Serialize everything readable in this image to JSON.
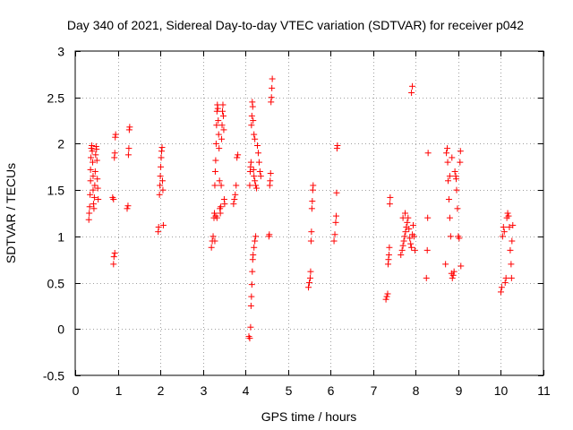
{
  "chart_data": {
    "type": "scatter",
    "title": "Day 340 of 2021, Sidereal Day-to-day VTEC variation (SDTVAR) for receiver p042",
    "xlabel": "GPS time / hours",
    "ylabel": "SDTVAR / TECUs",
    "xlim": [
      0,
      11
    ],
    "ylim": [
      -0.5,
      3
    ],
    "xticks": [
      "0",
      "1",
      "2",
      "3",
      "4",
      "5",
      "6",
      "7",
      "8",
      "9",
      "10",
      "11"
    ],
    "yticks": [
      "-0.5",
      "0",
      "0.5",
      "1",
      "1.5",
      "2",
      "2.5",
      "3"
    ],
    "grid": true,
    "marker": "+",
    "marker_color": "#ff0000",
    "series": [
      {
        "name": "SDTVAR",
        "points": [
          [
            0.32,
            1.18
          ],
          [
            0.33,
            1.25
          ],
          [
            0.34,
            1.32
          ],
          [
            0.35,
            1.45
          ],
          [
            0.36,
            1.6
          ],
          [
            0.36,
            1.72
          ],
          [
            0.37,
            1.85
          ],
          [
            0.38,
            1.95
          ],
          [
            0.39,
            1.98
          ],
          [
            0.4,
            1.92
          ],
          [
            0.41,
            1.8
          ],
          [
            0.42,
            1.65
          ],
          [
            0.42,
            1.5
          ],
          [
            0.43,
            1.35
          ],
          [
            0.44,
            1.3
          ],
          [
            0.45,
            1.42
          ],
          [
            0.46,
            1.55
          ],
          [
            0.47,
            1.7
          ],
          [
            0.48,
            1.88
          ],
          [
            0.49,
            1.97
          ],
          [
            0.5,
            1.94
          ],
          [
            0.51,
            1.82
          ],
          [
            0.52,
            1.62
          ],
          [
            0.53,
            1.52
          ],
          [
            0.54,
            1.4
          ],
          [
            0.88,
            1.42
          ],
          [
            0.9,
            1.4
          ],
          [
            0.92,
            1.85
          ],
          [
            0.93,
            1.9
          ],
          [
            0.94,
            2.07
          ],
          [
            0.95,
            2.1
          ],
          [
            0.9,
            0.7
          ],
          [
            0.91,
            0.78
          ],
          [
            0.93,
            0.82
          ],
          [
            1.22,
            1.3
          ],
          [
            1.24,
            1.33
          ],
          [
            1.25,
            1.88
          ],
          [
            1.26,
            1.95
          ],
          [
            1.27,
            2.15
          ],
          [
            1.28,
            2.18
          ],
          [
            1.95,
            1.05
          ],
          [
            1.96,
            1.1
          ],
          [
            1.98,
            1.45
          ],
          [
            1.99,
            1.55
          ],
          [
            2.0,
            1.65
          ],
          [
            2.01,
            1.75
          ],
          [
            2.02,
            1.85
          ],
          [
            2.03,
            1.92
          ],
          [
            2.04,
            1.96
          ],
          [
            2.05,
            1.6
          ],
          [
            2.06,
            1.5
          ],
          [
            2.07,
            1.12
          ],
          [
            3.2,
            0.88
          ],
          [
            3.22,
            0.95
          ],
          [
            3.24,
            1.0
          ],
          [
            3.26,
            1.2
          ],
          [
            3.27,
            1.25
          ],
          [
            3.28,
            1.55
          ],
          [
            3.29,
            1.7
          ],
          [
            3.3,
            1.82
          ],
          [
            3.31,
            2.0
          ],
          [
            3.32,
            2.2
          ],
          [
            3.33,
            2.35
          ],
          [
            3.34,
            2.42
          ],
          [
            3.35,
            2.38
          ],
          [
            3.36,
            2.25
          ],
          [
            3.37,
            2.1
          ],
          [
            3.38,
            1.95
          ],
          [
            3.39,
            1.6
          ],
          [
            3.4,
            1.3
          ],
          [
            3.41,
            1.25
          ],
          [
            3.42,
            1.32
          ],
          [
            3.43,
            1.55
          ],
          [
            3.44,
            2.05
          ],
          [
            3.45,
            2.2
          ],
          [
            3.46,
            2.35
          ],
          [
            3.47,
            2.42
          ],
          [
            3.48,
            2.3
          ],
          [
            3.49,
            2.15
          ],
          [
            3.5,
            1.4
          ],
          [
            3.51,
            1.35
          ],
          [
            3.28,
            0.95
          ],
          [
            3.3,
            1.22
          ],
          [
            3.33,
            1.2
          ],
          [
            3.72,
            1.35
          ],
          [
            3.74,
            1.4
          ],
          [
            3.76,
            1.45
          ],
          [
            3.78,
            1.55
          ],
          [
            3.8,
            1.85
          ],
          [
            3.82,
            1.88
          ],
          [
            4.08,
            -0.08
          ],
          [
            4.1,
            -0.1
          ],
          [
            4.12,
            0.02
          ],
          [
            4.13,
            0.25
          ],
          [
            4.14,
            0.35
          ],
          [
            4.15,
            0.48
          ],
          [
            4.16,
            0.62
          ],
          [
            4.17,
            0.75
          ],
          [
            4.18,
            0.8
          ],
          [
            4.2,
            0.88
          ],
          [
            4.22,
            0.95
          ],
          [
            4.24,
            1.0
          ],
          [
            4.1,
            1.55
          ],
          [
            4.11,
            1.7
          ],
          [
            4.12,
            1.75
          ],
          [
            4.13,
            1.8
          ],
          [
            4.14,
            2.2
          ],
          [
            4.15,
            2.3
          ],
          [
            4.16,
            2.45
          ],
          [
            4.17,
            2.4
          ],
          [
            4.18,
            2.25
          ],
          [
            4.19,
            1.72
          ],
          [
            4.2,
            1.65
          ],
          [
            4.22,
            1.6
          ],
          [
            4.24,
            1.55
          ],
          [
            4.26,
            1.52
          ],
          [
            4.28,
            1.98
          ],
          [
            4.3,
            1.9
          ],
          [
            4.32,
            1.8
          ],
          [
            4.34,
            1.7
          ],
          [
            4.36,
            1.65
          ],
          [
            4.2,
            2.1
          ],
          [
            4.22,
            2.05
          ],
          [
            4.55,
            1.0
          ],
          [
            4.56,
            1.02
          ],
          [
            4.57,
            1.55
          ],
          [
            4.58,
            1.6
          ],
          [
            4.59,
            1.68
          ],
          [
            4.6,
            2.45
          ],
          [
            4.61,
            2.5
          ],
          [
            4.62,
            2.6
          ],
          [
            4.63,
            2.7
          ],
          [
            5.48,
            0.45
          ],
          [
            5.5,
            0.5
          ],
          [
            5.52,
            0.55
          ],
          [
            5.53,
            0.62
          ],
          [
            5.54,
            0.95
          ],
          [
            5.55,
            1.05
          ],
          [
            5.56,
            1.3
          ],
          [
            5.57,
            1.38
          ],
          [
            5.58,
            1.5
          ],
          [
            5.59,
            1.55
          ],
          [
            6.08,
            0.95
          ],
          [
            6.1,
            1.02
          ],
          [
            6.12,
            1.15
          ],
          [
            6.13,
            1.22
          ],
          [
            6.14,
            1.47
          ],
          [
            6.15,
            1.95
          ],
          [
            6.16,
            1.98
          ],
          [
            7.3,
            0.32
          ],
          [
            7.32,
            0.35
          ],
          [
            7.34,
            0.38
          ],
          [
            7.35,
            0.7
          ],
          [
            7.36,
            0.75
          ],
          [
            7.37,
            0.8
          ],
          [
            7.38,
            0.88
          ],
          [
            7.39,
            1.35
          ],
          [
            7.4,
            1.42
          ],
          [
            7.65,
            0.8
          ],
          [
            7.68,
            0.85
          ],
          [
            7.7,
            0.9
          ],
          [
            7.72,
            0.95
          ],
          [
            7.74,
            1.0
          ],
          [
            7.76,
            1.05
          ],
          [
            7.78,
            1.1
          ],
          [
            7.8,
            1.15
          ],
          [
            7.82,
            1.2
          ],
          [
            7.84,
            1.08
          ],
          [
            7.86,
            0.98
          ],
          [
            7.88,
            0.92
          ],
          [
            7.9,
            0.88
          ],
          [
            7.92,
            1.02
          ],
          [
            7.94,
            1.12
          ],
          [
            7.96,
            1.0
          ],
          [
            7.98,
            0.85
          ],
          [
            7.7,
            1.2
          ],
          [
            7.75,
            1.25
          ],
          [
            7.9,
            2.55
          ],
          [
            7.92,
            2.62
          ],
          [
            8.25,
            0.55
          ],
          [
            8.27,
            0.85
          ],
          [
            8.28,
            1.2
          ],
          [
            8.29,
            1.9
          ],
          [
            8.7,
            0.7
          ],
          [
            8.72,
            1.9
          ],
          [
            8.74,
            1.95
          ],
          [
            8.75,
            1.8
          ],
          [
            8.76,
            1.6
          ],
          [
            8.78,
            1.4
          ],
          [
            8.8,
            1.2
          ],
          [
            8.82,
            1.0
          ],
          [
            8.84,
            0.6
          ],
          [
            8.86,
            0.55
          ],
          [
            8.88,
            0.58
          ],
          [
            8.9,
            0.62
          ],
          [
            8.92,
            1.7
          ],
          [
            8.94,
            1.65
          ],
          [
            8.96,
            1.5
          ],
          [
            8.98,
            1.3
          ],
          [
            9.0,
            1.0
          ],
          [
            9.02,
            0.98
          ],
          [
            9.04,
            1.8
          ],
          [
            9.05,
            1.92
          ],
          [
            9.06,
            0.68
          ],
          [
            8.8,
            1.65
          ],
          [
            8.85,
            1.85
          ],
          [
            8.95,
            1.62
          ],
          [
            10.0,
            0.4
          ],
          [
            10.02,
            0.45
          ],
          [
            10.04,
            1.0
          ],
          [
            10.06,
            1.1
          ],
          [
            10.08,
            1.05
          ],
          [
            10.1,
            0.5
          ],
          [
            10.12,
            0.55
          ],
          [
            10.14,
            1.2
          ],
          [
            10.16,
            1.25
          ],
          [
            10.18,
            1.22
          ],
          [
            10.2,
            1.1
          ],
          [
            10.22,
            0.85
          ],
          [
            10.24,
            0.7
          ],
          [
            10.25,
            0.55
          ],
          [
            10.26,
            0.95
          ],
          [
            10.28,
            1.12
          ]
        ]
      }
    ]
  }
}
